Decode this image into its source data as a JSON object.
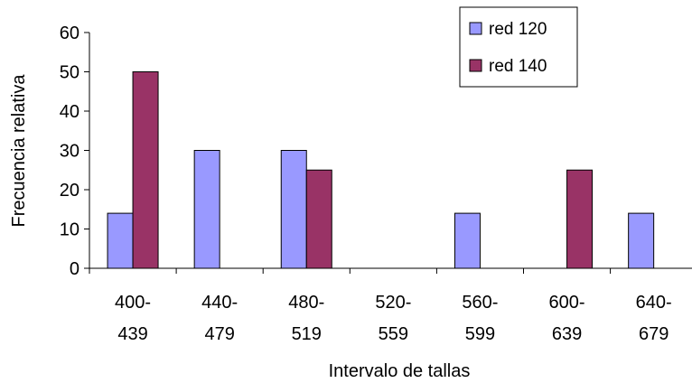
{
  "chart_data": {
    "type": "bar",
    "categories": [
      "400-439",
      "440-479",
      "480-519",
      "520-559",
      "560-599",
      "600-639",
      "640-679"
    ],
    "category_lines": [
      [
        "400-",
        "439"
      ],
      [
        "440-",
        "479"
      ],
      [
        "480-",
        "519"
      ],
      [
        "520-",
        "559"
      ],
      [
        "560-",
        "599"
      ],
      [
        "600-",
        "639"
      ],
      [
        "640-",
        "679"
      ]
    ],
    "series": [
      {
        "name": "red 120",
        "color": "#9999ff",
        "values": [
          14,
          30,
          30,
          0,
          14,
          0,
          14
        ]
      },
      {
        "name": "red 140",
        "color": "#993366",
        "values": [
          50,
          0,
          25,
          0,
          0,
          25,
          0
        ]
      }
    ],
    "xlabel": "Intervalo de tallas",
    "ylabel": "Frecuencia relativa",
    "ylim": [
      0,
      60
    ],
    "yticks": [
      0,
      10,
      20,
      30,
      40,
      50,
      60
    ],
    "grid": false,
    "legend_position": "top-right"
  }
}
